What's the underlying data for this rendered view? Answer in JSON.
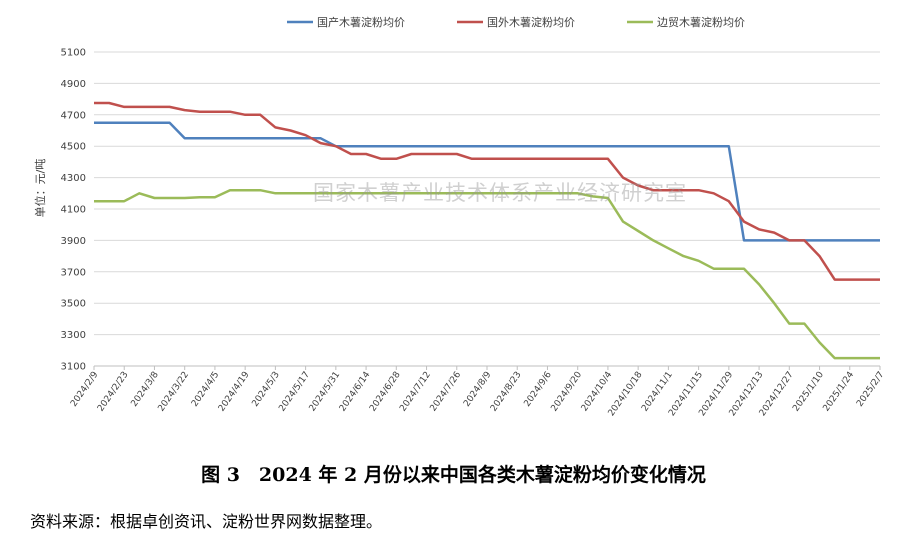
{
  "chart_data": {
    "type": "line",
    "title": "",
    "xlabel": "",
    "ylabel": "单位：元/吨",
    "ylim": [
      3100,
      5100
    ],
    "yticks": [
      3100,
      3300,
      3500,
      3700,
      3900,
      4100,
      4300,
      4500,
      4700,
      4900,
      5100
    ],
    "grid": true,
    "legend_position": "top",
    "watermark": "国家木薯产业技术体系产业经济研究室",
    "x": [
      "2024/2/9",
      "2024/2/16",
      "2024/2/23",
      "2024/3/1",
      "2024/3/8",
      "2024/3/15",
      "2024/3/22",
      "2024/3/29",
      "2024/4/5",
      "2024/4/12",
      "2024/4/19",
      "2024/4/26",
      "2024/5/3",
      "2024/5/10",
      "2024/5/17",
      "2024/5/24",
      "2024/5/31",
      "2024/6/7",
      "2024/6/14",
      "2024/6/21",
      "2024/6/28",
      "2024/7/5",
      "2024/7/12",
      "2024/7/19",
      "2024/7/26",
      "2024/8/2",
      "2024/8/9",
      "2024/8/16",
      "2024/8/23",
      "2024/8/30",
      "2024/9/6",
      "2024/9/13",
      "2024/9/20",
      "2024/9/27",
      "2024/10/4",
      "2024/10/11",
      "2024/10/18",
      "2024/10/25",
      "2024/11/1",
      "2024/11/8",
      "2024/11/15",
      "2024/11/22",
      "2024/11/29",
      "2024/12/6",
      "2024/12/13",
      "2024/12/20",
      "2024/12/27",
      "2025/1/3",
      "2025/1/10",
      "2025/1/17",
      "2025/1/24",
      "2025/1/31",
      "2025/2/7"
    ],
    "xticks": [
      "2024/2/9",
      "2024/2/23",
      "2024/3/8",
      "2024/3/22",
      "2024/4/5",
      "2024/4/19",
      "2024/5/3",
      "2024/5/17",
      "2024/5/31",
      "2024/6/14",
      "2024/6/28",
      "2024/7/12",
      "2024/7/26",
      "2024/8/9",
      "2024/8/23",
      "2024/9/6",
      "2024/9/20",
      "2024/10/4",
      "2024/10/18",
      "2024/11/1",
      "2024/11/15",
      "2024/11/29",
      "2024/12/13",
      "2024/12/27",
      "2025/1/10",
      "2025/1/24",
      "2025/2/7"
    ],
    "series": [
      {
        "name": "国产木薯淀粉均价",
        "color": "#4f81bd",
        "values": [
          4650,
          4650,
          4650,
          4650,
          4650,
          4650,
          4550,
          4550,
          4550,
          4550,
          4550,
          4550,
          4550,
          4550,
          4550,
          4550,
          4500,
          4500,
          4500,
          4500,
          4500,
          4500,
          4500,
          4500,
          4500,
          4500,
          4500,
          4500,
          4500,
          4500,
          4500,
          4500,
          4500,
          4500,
          4500,
          4500,
          4500,
          4500,
          4500,
          4500,
          4500,
          4500,
          4500,
          3900,
          3900,
          3900,
          3900,
          3900,
          3900,
          3900,
          3900,
          3900,
          3900
        ]
      },
      {
        "name": "国外木薯淀粉均价",
        "color": "#c0504d",
        "values": [
          4775,
          4775,
          4750,
          4750,
          4750,
          4750,
          4730,
          4720,
          4720,
          4720,
          4700,
          4700,
          4620,
          4600,
          4570,
          4520,
          4500,
          4450,
          4450,
          4420,
          4420,
          4450,
          4450,
          4450,
          4450,
          4420,
          4420,
          4420,
          4420,
          4420,
          4420,
          4420,
          4420,
          4420,
          4420,
          4300,
          4250,
          4220,
          4220,
          4220,
          4220,
          4200,
          4150,
          4020,
          3970,
          3950,
          3900,
          3900,
          3800,
          3650,
          3650,
          3650,
          3650
        ]
      },
      {
        "name": "边贸木薯淀粉均价",
        "color": "#9bbb59",
        "values": [
          4150,
          4150,
          4150,
          4200,
          4170,
          4170,
          4170,
          4175,
          4175,
          4220,
          4220,
          4220,
          4200,
          4200,
          4200,
          4200,
          4200,
          4200,
          4200,
          4200,
          4200,
          4200,
          4200,
          4200,
          4200,
          4200,
          4200,
          4200,
          4200,
          4200,
          4200,
          4200,
          4200,
          4180,
          4170,
          4020,
          3960,
          3900,
          3850,
          3800,
          3770,
          3720,
          3720,
          3720,
          3620,
          3500,
          3370,
          3370,
          3250,
          3150,
          3150,
          3150,
          3150
        ]
      }
    ]
  },
  "caption": "图 3　2024 年 2 月份以来中国各类木薯淀粉均价变化情况",
  "source": "资料来源：根据卓创资讯、淀粉世界网数据整理。"
}
